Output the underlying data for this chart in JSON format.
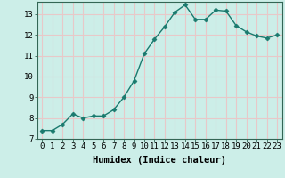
{
  "x": [
    0,
    1,
    2,
    3,
    4,
    5,
    6,
    7,
    8,
    9,
    10,
    11,
    12,
    13,
    14,
    15,
    16,
    17,
    18,
    19,
    20,
    21,
    22,
    23
  ],
  "y": [
    7.4,
    7.4,
    7.7,
    8.2,
    8.0,
    8.1,
    8.1,
    8.4,
    9.0,
    9.8,
    11.1,
    11.8,
    12.4,
    13.1,
    13.45,
    12.75,
    12.75,
    13.2,
    13.15,
    12.45,
    12.15,
    11.95,
    11.85,
    12.0
  ],
  "line_color": "#1a7a6e",
  "marker": "D",
  "marker_size": 2.5,
  "bg_color": "#cceee8",
  "plot_bg_color": "#cceee8",
  "grid_color": "#e8c8c8",
  "xlabel": "Humidex (Indice chaleur)",
  "xlim": [
    -0.5,
    23.5
  ],
  "ylim": [
    7,
    13.6
  ],
  "yticks": [
    7,
    8,
    9,
    10,
    11,
    12,
    13
  ],
  "xtick_labels": [
    "0",
    "1",
    "2",
    "3",
    "4",
    "5",
    "6",
    "7",
    "8",
    "9",
    "10",
    "11",
    "12",
    "13",
    "14",
    "15",
    "16",
    "17",
    "18",
    "19",
    "20",
    "21",
    "22",
    "23"
  ],
  "xlabel_fontsize": 7.5,
  "tick_fontsize": 6.5,
  "line_width": 1.0
}
